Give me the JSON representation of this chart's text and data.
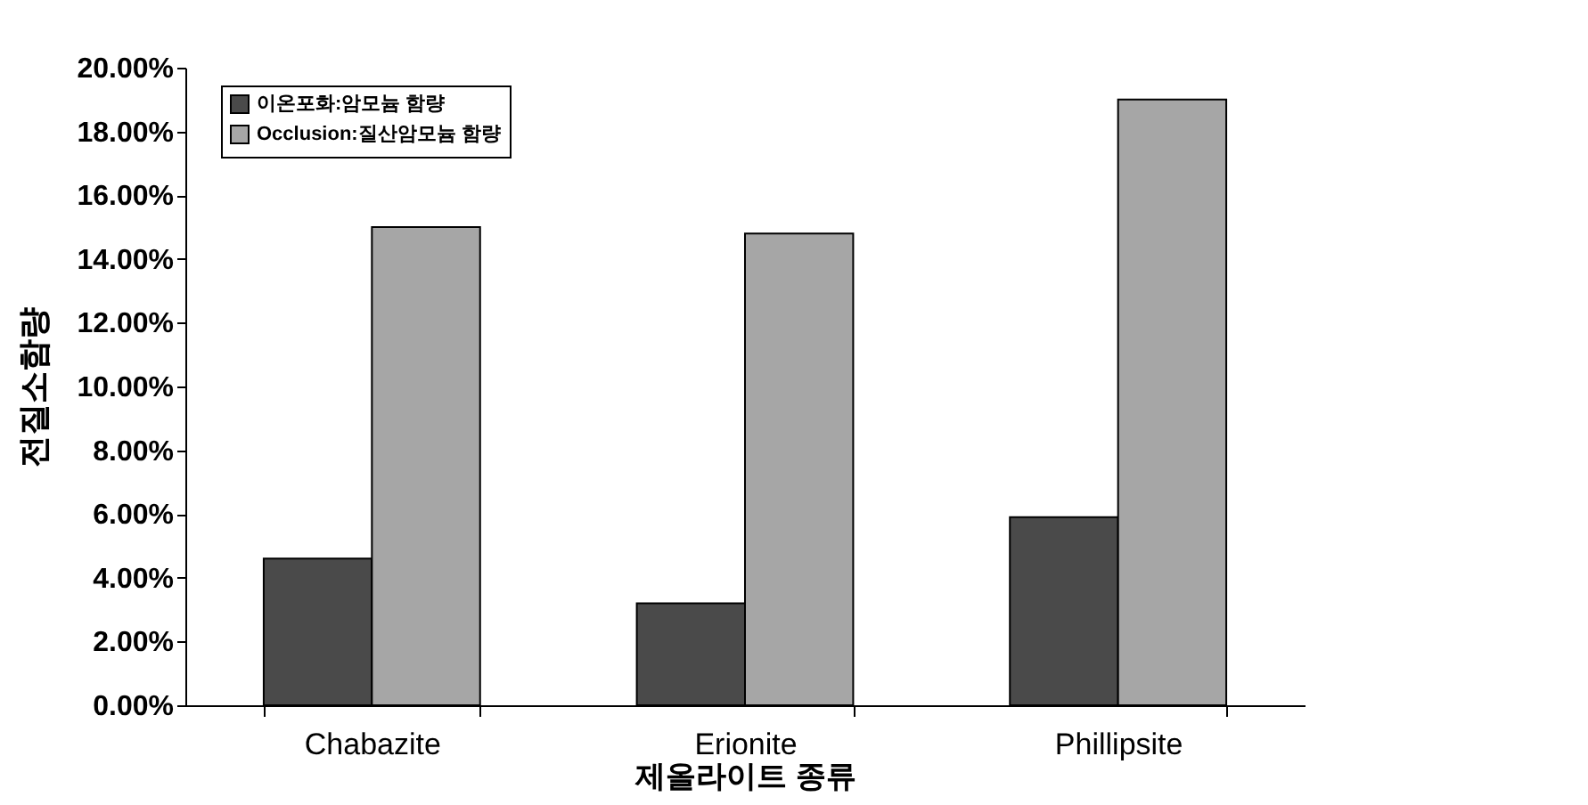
{
  "chart_data": {
    "type": "bar",
    "xlabel": "제올라이트 종류",
    "ylabel": "전질소함량",
    "categories": [
      "Chabazite",
      "Erionite",
      "Phillipsite"
    ],
    "series": [
      {
        "name": "이온포화:암모늄 함량",
        "color": "#4a4a4a",
        "values": [
          4.6,
          3.2,
          5.9
        ]
      },
      {
        "name": "Occlusion:질산암모늄 함량",
        "color": "#a6a6a6",
        "values": [
          15.0,
          14.8,
          19.0
        ]
      }
    ],
    "ylim": [
      0,
      20
    ],
    "yticks": [
      {
        "value": 0,
        "label": "0.00%"
      },
      {
        "value": 2,
        "label": "2.00%"
      },
      {
        "value": 4,
        "label": "4.00%"
      },
      {
        "value": 6,
        "label": "6.00%"
      },
      {
        "value": 8,
        "label": "8.00%"
      },
      {
        "value": 10,
        "label": "10.00%"
      },
      {
        "value": 12,
        "label": "12.00%"
      },
      {
        "value": 14,
        "label": "14.00%"
      },
      {
        "value": 16,
        "label": "16.00%"
      },
      {
        "value": 18,
        "label": "18.00%"
      },
      {
        "value": 20,
        "label": "20.00%"
      }
    ],
    "grid": false,
    "legend": "top left"
  }
}
